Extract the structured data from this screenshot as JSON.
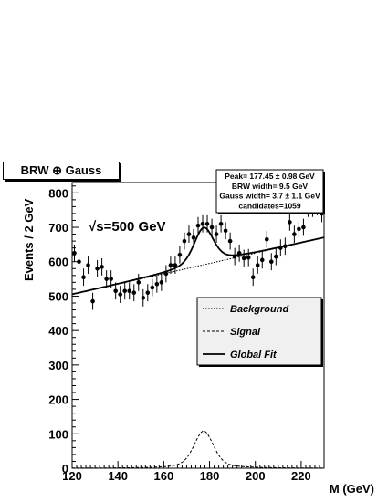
{
  "chart_data": {
    "type": "scatter",
    "title": "BRW ⊕ Gauss",
    "xlabel": "M (GeV)",
    "ylabel": "Events / 2 GeV",
    "xlim": [
      120,
      230
    ],
    "ylim": [
      0,
      830
    ],
    "x_ticks": [
      120,
      140,
      160,
      180,
      200,
      220
    ],
    "x_tick_labels": [
      "120",
      "140",
      "160",
      "180",
      "200",
      "220"
    ],
    "y_ticks": [
      0,
      100,
      200,
      300,
      400,
      500,
      600,
      700,
      800
    ],
    "y_tick_labels": [
      "0",
      "100",
      "200",
      "300",
      "400",
      "500",
      "600",
      "700",
      "800"
    ],
    "annotation": "√s=500 GeV",
    "stats": [
      "Peak= 177.45 ± 0.98 GeV",
      "BRW   width= 9.5 GeV",
      "Gauss width= 3.7 ±  1.1 GeV",
      "candidates=1059"
    ],
    "legend_position": "right",
    "legend": [
      {
        "label": "Background",
        "style": "dotted"
      },
      {
        "label": "Signal",
        "style": "dashed"
      },
      {
        "label": "Global Fit",
        "style": "solid"
      }
    ],
    "data_points": {
      "x": [
        121,
        123,
        125,
        127,
        129,
        131,
        133,
        135,
        137,
        139,
        141,
        143,
        145,
        147,
        149,
        151,
        153,
        155,
        157,
        159,
        161,
        163,
        165,
        167,
        169,
        171,
        173,
        175,
        177,
        179,
        181,
        183,
        185,
        187,
        189,
        191,
        193,
        195,
        197,
        199,
        201,
        203,
        205,
        207,
        209,
        211,
        213,
        215,
        217,
        219,
        221,
        223,
        225,
        227,
        229
      ],
      "y": [
        625,
        600,
        555,
        590,
        485,
        580,
        585,
        550,
        550,
        515,
        505,
        515,
        515,
        510,
        540,
        495,
        510,
        525,
        535,
        540,
        565,
        590,
        590,
        620,
        660,
        680,
        670,
        705,
        710,
        710,
        700,
        680,
        710,
        690,
        660,
        615,
        625,
        610,
        612,
        555,
        590,
        605,
        665,
        600,
        615,
        640,
        645,
        715,
        680,
        695,
        700,
        755,
        755,
        760,
        740
      ],
      "error": 25
    },
    "series": [
      {
        "name": "Background",
        "style": "dotted",
        "slope": 1.5,
        "intercept": 505
      },
      {
        "name": "Signal",
        "style": "dashed",
        "peak": 177.45,
        "amplitude": 108
      },
      {
        "name": "Global Fit",
        "style": "solid"
      }
    ]
  }
}
